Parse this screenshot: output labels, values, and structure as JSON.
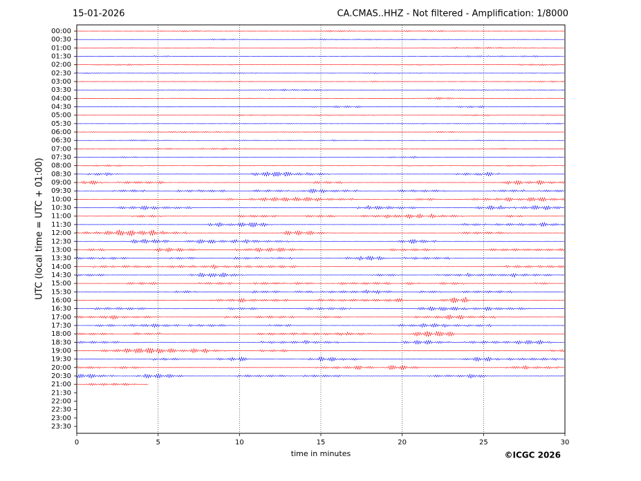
{
  "chart_data": {
    "type": "helicorder",
    "date": "15-01-2026",
    "title": "CA.CMAS..HHZ - Not filtered - Amplification: 1/8000",
    "ylabel": "UTC (local time = UTC + 01:00)",
    "xlabel": "time in minutes",
    "credit": "©ICGC 2026",
    "categories": [
      "00:00",
      "00:30",
      "01:00",
      "01:30",
      "02:00",
      "02:30",
      "03:00",
      "03:30",
      "04:00",
      "04:30",
      "05:00",
      "05:30",
      "06:00",
      "06:30",
      "07:00",
      "07:30",
      "08:00",
      "08:30",
      "09:00",
      "09:30",
      "10:00",
      "10:30",
      "11:00",
      "11:30",
      "12:00",
      "12:30",
      "13:00",
      "13:30",
      "14:00",
      "14:30",
      "15:00",
      "15:30",
      "16:00",
      "16:30",
      "17:00",
      "17:30",
      "18:00",
      "18:30",
      "19:00",
      "19:30",
      "20:00",
      "20:30",
      "21:00",
      "21:30",
      "22:00",
      "22:30",
      "23:00",
      "23:30"
    ],
    "trace_end": [
      30,
      30,
      30,
      30,
      30,
      30,
      30,
      30,
      30,
      30,
      30,
      30,
      30,
      30,
      30,
      30,
      30,
      30,
      30,
      30,
      30,
      30,
      30,
      30,
      30,
      30,
      30,
      30,
      30,
      30,
      30,
      30,
      30,
      30,
      30,
      30,
      30,
      30,
      30,
      30,
      30,
      30,
      4.4,
      null,
      null,
      null,
      null,
      null
    ],
    "trace_colors": [
      "#ff0000",
      "#0000ff"
    ],
    "xlim": [
      0,
      30
    ],
    "xticks": [
      0,
      5,
      10,
      15,
      20,
      25,
      30
    ],
    "grid": true
  }
}
